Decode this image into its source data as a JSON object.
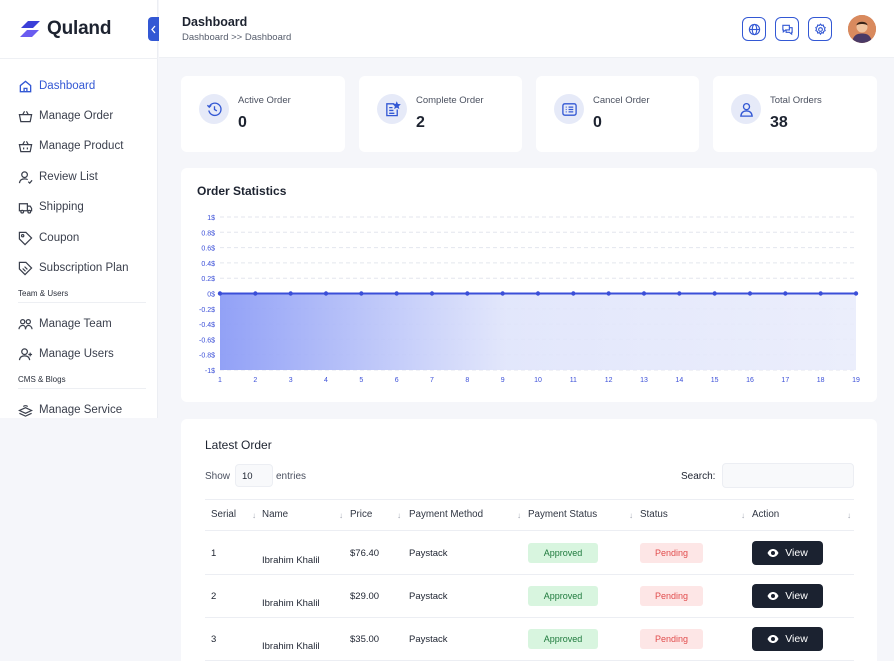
{
  "app": {
    "name": "Quland"
  },
  "header": {
    "title": "Dashboard",
    "breadcrumb": "Dashboard >> Dashboard"
  },
  "sidebar": {
    "items": [
      {
        "label": "Dashboard",
        "icon": "home-icon",
        "active": true
      },
      {
        "label": "Manage Order",
        "icon": "basket-icon"
      },
      {
        "label": "Manage Product",
        "icon": "basket-icon"
      },
      {
        "label": "Review List",
        "icon": "user-review-icon"
      },
      {
        "label": "Shipping",
        "icon": "truck-icon"
      },
      {
        "label": "Coupon",
        "icon": "coupon-icon"
      },
      {
        "label": "Subscription Plan",
        "icon": "subscription-icon"
      }
    ],
    "section_team": "Team & Users",
    "team_items": [
      {
        "label": "Manage Team",
        "icon": "team-icon"
      },
      {
        "label": "Manage Users",
        "icon": "users-icon"
      }
    ],
    "section_cms": "CMS & Blogs",
    "cms_items": [
      {
        "label": "Manage Service",
        "icon": "service-icon"
      }
    ]
  },
  "top_icons": [
    "globe-icon",
    "chat-icon",
    "gear-icon"
  ],
  "stats": [
    {
      "label": "Active Order",
      "value": "0",
      "icon": "clock-icon"
    },
    {
      "label": "Complete Order",
      "value": "2",
      "icon": "checklist-icon"
    },
    {
      "label": "Cancel Order",
      "value": "0",
      "icon": "list-icon"
    },
    {
      "label": "Total Orders",
      "value": "38",
      "icon": "user-icon"
    }
  ],
  "chart_data": {
    "type": "area",
    "title": "Order Statistics",
    "x": [
      1,
      2,
      3,
      4,
      5,
      6,
      7,
      8,
      9,
      10,
      11,
      12,
      13,
      14,
      15,
      16,
      17,
      18,
      19
    ],
    "series": [
      {
        "values": [
          0,
          0,
          0,
          0,
          0,
          0,
          0,
          0,
          0,
          0,
          0,
          0,
          0,
          0,
          0,
          0,
          0,
          0,
          0
        ]
      }
    ],
    "y_ticks": [
      "1$",
      "0.8$",
      "0.6$",
      "0.4$",
      "0.2$",
      "0$",
      "-0.2$",
      "-0.4$",
      "-0.6$",
      "-0.8$",
      "-1$"
    ],
    "ylim": [
      -1,
      1
    ],
    "grid": true,
    "color": "#3b4fd8"
  },
  "latest_order": {
    "title": "Latest Order",
    "show_label": "Show",
    "show_value": "10",
    "entries_label": "entries",
    "search_label": "Search:",
    "search_value": "",
    "columns": [
      "Serial",
      "Name",
      "Price",
      "Payment Method",
      "Payment Status",
      "Status",
      "Action"
    ],
    "rows": [
      {
        "serial": "1",
        "name": "Ibrahim Khalil",
        "price": "$76.40",
        "method": "Paystack",
        "payment_status": "Approved",
        "status": "Pending",
        "action": "View"
      },
      {
        "serial": "2",
        "name": "Ibrahim Khalil",
        "price": "$29.00",
        "method": "Paystack",
        "payment_status": "Approved",
        "status": "Pending",
        "action": "View"
      },
      {
        "serial": "3",
        "name": "Ibrahim Khalil",
        "price": "$35.00",
        "method": "Paystack",
        "payment_status": "Approved",
        "status": "Pending",
        "action": "View"
      }
    ]
  }
}
